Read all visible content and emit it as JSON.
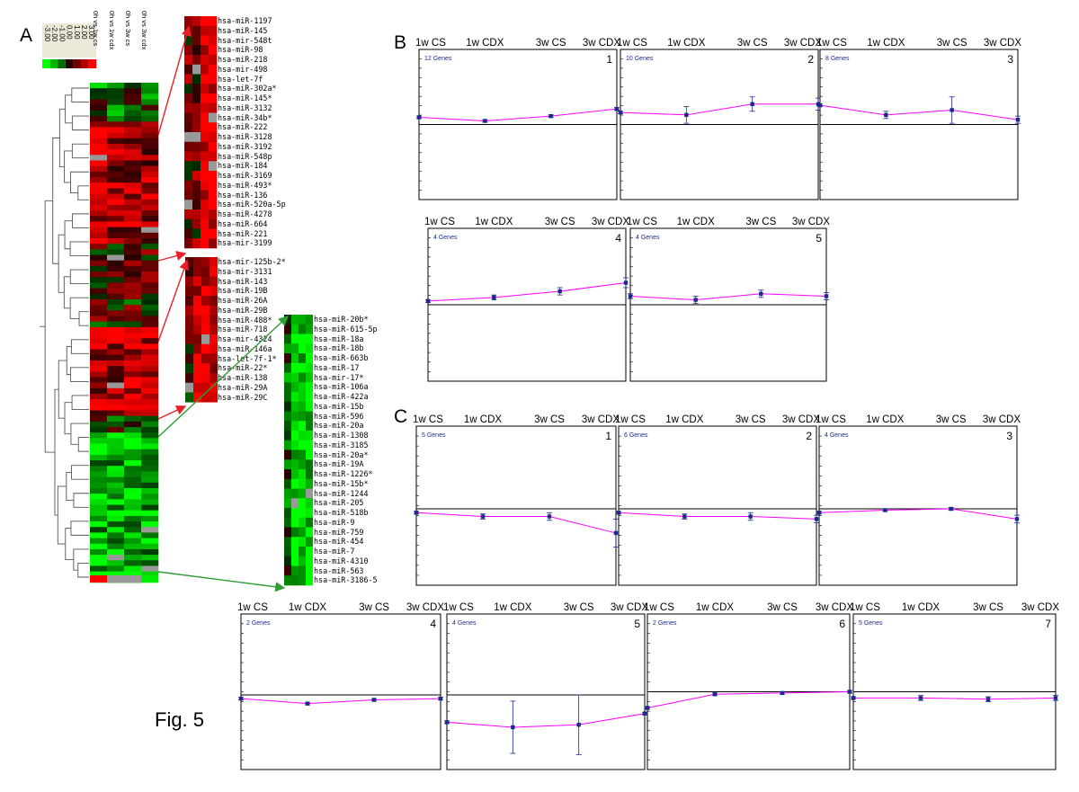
{
  "figure_label": "Fig. 5",
  "panels": {
    "A": {
      "letter": "A",
      "scale_values": [
        "-3.00",
        "-2.00",
        "-1.00",
        "0.00",
        "1.00",
        "2.00",
        "3.00"
      ],
      "condition_columns": [
        "0h vs 1w cs",
        "0h vs 1w cdx",
        "0h vs 3w cs",
        "0h vs 3w cdx"
      ],
      "color_low": "#00ee00",
      "color_mid": "#000000",
      "color_high": "#ff0000",
      "color_missing": "#999999",
      "zoom_upper": [
        "hsa-miR-1197",
        "hsa-miR-145",
        "hsa-mir-548t",
        "hsa-miR-98",
        "hsa-miR-218",
        "hsa-mir-498",
        "hsa-let-7f",
        "hsa-miR-302a*",
        "hsa-miR-145*",
        "hsa-miR-3132",
        "hsa-miR-34b*",
        "hsa-miR-222",
        "hsa-miR-3128",
        "hsa-miR-3192",
        "hsa-miR-548p",
        "hsa-miR-184",
        "hsa-miR-3169",
        "hsa-miR-493*",
        "hsa-miR-136",
        "hsa-miR-520a-5p",
        "hsa-miR-4278",
        "hsa-miR-664",
        "hsa-miR-221",
        "hsa-mir-3199"
      ],
      "zoom_middle": [
        "hsa-mir-125b-2*",
        "hsa-mir-3131",
        "hsa-miR-143",
        "hsa-miR-19B",
        "hsa-miR-26A",
        "hsa-miR-29B",
        "hsa-miR-488*",
        "hsa-miR-718",
        "hsa-mir-4324",
        "hsa-miR-146a",
        "hsa-let-7f-1*",
        "hsa-miR-22*",
        "hsa-miR-138",
        "hsa-miR-29A",
        "hsa-miR-29C"
      ],
      "zoom_lower": [
        "hsa-miR-20b*",
        "hsa-miR-615-5p",
        "hsa-miR-18a",
        "hsa-miR-18b",
        "hsa-miR-663b",
        "hsa-miR-17",
        "hsa-mir-17*",
        "hsa-miR-106a",
        "hsa-miR-422a",
        "hsa-miR-15b",
        "hsa-miR-596",
        "hsa-miR-20a",
        "hsa-miR-1308",
        "hsa-miR-3185",
        "hsa-miR-20a*",
        "hsa-miR-19A",
        "hsa-miR-1226*",
        "hsa-miR-15b*",
        "hsa-miR-1244",
        "hsa-miR-205",
        "hsa-miR-518b",
        "hsa-miR-9",
        "hsa-miR-759",
        "hsa-miR-454",
        "hsa-miR-7",
        "hsa-miR-4310",
        "hsa-miR-563",
        "hsa-miR-3186-5"
      ]
    },
    "B": {
      "letter": "B"
    },
    "C": {
      "letter": "C"
    }
  },
  "chart_data": [
    {
      "type": "line",
      "panel": "B",
      "number": "1",
      "genes_label": "12 Genes",
      "x": [
        "1w CS",
        "1w CDX",
        "3w CS",
        "3w CDX"
      ],
      "values": [
        0.3,
        0.15,
        0.35,
        0.65
      ],
      "error": [
        0.05,
        0.05,
        0.05,
        0.05
      ],
      "color": "#ff00ff",
      "marker_color": "#1a2a8c"
    },
    {
      "type": "line",
      "panel": "B",
      "number": "2",
      "genes_label": "10 Genes",
      "x": [
        "1w CS",
        "1w CDX",
        "3w CS",
        "3w CDX"
      ],
      "values": [
        0.5,
        0.4,
        0.85,
        0.85
      ],
      "error": [
        0.05,
        0.35,
        0.3,
        0.25
      ],
      "color": "#ff00ff",
      "marker_color": "#1a2a8c"
    },
    {
      "type": "line",
      "panel": "B",
      "number": "3",
      "genes_label": "8 Genes",
      "x": [
        "1w CS",
        "1w CDX",
        "3w CS",
        "3w CDX"
      ],
      "values": [
        0.8,
        0.4,
        0.6,
        0.2
      ],
      "error": [
        0.05,
        0.15,
        0.55,
        0.15
      ],
      "color": "#ff00ff",
      "marker_color": "#1a2a8c"
    },
    {
      "type": "line",
      "panel": "B",
      "number": "4",
      "genes_label": "4 Genes",
      "x": [
        "1w CS",
        "1w CDX",
        "3w CS",
        "3w CDX"
      ],
      "values": [
        0.15,
        0.3,
        0.55,
        0.9
      ],
      "error": [
        0.05,
        0.1,
        0.15,
        0.2
      ],
      "color": "#ff00ff",
      "marker_color": "#1a2a8c"
    },
    {
      "type": "line",
      "panel": "B",
      "number": "5",
      "genes_label": "4 Genes",
      "x": [
        "1w CS",
        "1w CDX",
        "3w CS",
        "3w CDX"
      ],
      "values": [
        0.35,
        0.2,
        0.45,
        0.35
      ],
      "error": [
        0.1,
        0.15,
        0.15,
        0.15
      ],
      "color": "#ff00ff",
      "marker_color": "#1a2a8c"
    },
    {
      "type": "line",
      "panel": "C",
      "number": "1",
      "genes_label": "5 Genes",
      "x": [
        "1w CS",
        "1w CDX",
        "3w CS",
        "3w CDX"
      ],
      "values": [
        -0.15,
        -0.3,
        -0.3,
        -0.95
      ],
      "error": [
        0.05,
        0.1,
        0.15,
        0.55
      ],
      "color": "#ff00ff",
      "marker_color": "#1a2a8c"
    },
    {
      "type": "line",
      "panel": "C",
      "number": "2",
      "genes_label": "6 Genes",
      "x": [
        "1w CS",
        "1w CDX",
        "3w CS",
        "3w CDX"
      ],
      "values": [
        -0.15,
        -0.3,
        -0.3,
        -0.4
      ],
      "error": [
        0.05,
        0.1,
        0.15,
        0.15
      ],
      "color": "#ff00ff",
      "marker_color": "#1a2a8c"
    },
    {
      "type": "line",
      "panel": "C",
      "number": "3",
      "genes_label": "4 Genes",
      "x": [
        "1w CS",
        "1w CDX",
        "3w CS",
        "3w CDX"
      ],
      "values": [
        -0.15,
        -0.05,
        0.0,
        -0.4
      ],
      "error": [
        0.05,
        0.05,
        0.05,
        0.15
      ],
      "color": "#ff00ff",
      "marker_color": "#1a2a8c"
    },
    {
      "type": "line",
      "panel": "C",
      "number": "4",
      "genes_label": "2 Genes",
      "x": [
        "1w CS",
        "1w CDX",
        "3w CS",
        "3w CDX"
      ],
      "values": [
        -0.15,
        -0.35,
        -0.2,
        -0.15
      ],
      "error": [
        0.05,
        0.05,
        0.05,
        0.05
      ],
      "color": "#ff00ff",
      "marker_color": "#1a2a8c"
    },
    {
      "type": "line",
      "panel": "C",
      "number": "5",
      "genes_label": "4 Genes",
      "x": [
        "1w CS",
        "1w CDX",
        "3w CS",
        "3w CDX"
      ],
      "values": [
        -1.1,
        -1.3,
        -1.2,
        -0.75
      ],
      "error": [
        0.05,
        1.05,
        1.2,
        0.05
      ],
      "color": "#ff00ff",
      "marker_color": "#1a2a8c"
    },
    {
      "type": "line",
      "panel": "C",
      "number": "6",
      "genes_label": "2 Genes",
      "x": [
        "1w CS",
        "1w CDX",
        "3w CS",
        "3w CDX"
      ],
      "values": [
        -0.65,
        -0.1,
        -0.05,
        0.0
      ],
      "error": [
        0.05,
        0.05,
        0.05,
        0.05
      ],
      "color": "#ff00ff",
      "marker_color": "#1a2a8c"
    },
    {
      "type": "line",
      "panel": "C",
      "number": "7",
      "genes_label": "5 Genes",
      "x": [
        "1w CS",
        "1w CDX",
        "3w CS",
        "3w CDX"
      ],
      "values": [
        -0.25,
        -0.25,
        -0.3,
        -0.25
      ],
      "error": [
        0.05,
        0.1,
        0.1,
        0.1
      ],
      "color": "#ff00ff",
      "marker_color": "#1a2a8c"
    }
  ]
}
